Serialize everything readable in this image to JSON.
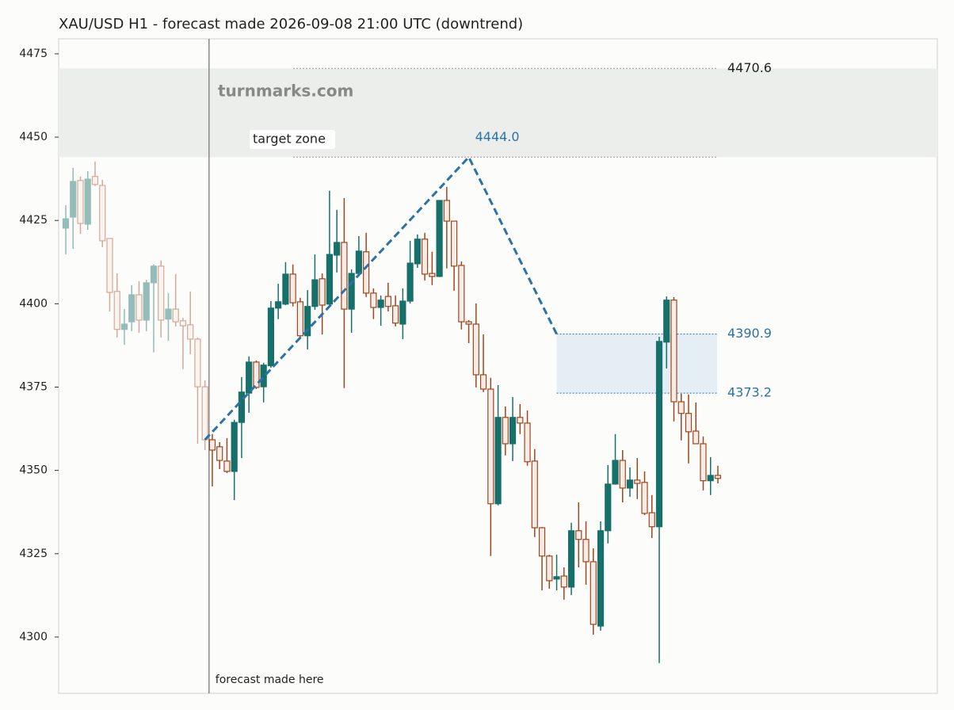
{
  "chart_data": {
    "type": "candlestick",
    "title": "XAU/USD H1 - forecast made 2026-09-08 21:00 UTC (downtrend)",
    "watermark": "turnmarks.com",
    "forecast_note": "forecast made here",
    "ylim": [
      4283.1,
      4479.5
    ],
    "yticks": [
      4300,
      4325,
      4350,
      4375,
      4400,
      4425,
      4450,
      4475
    ],
    "up_color": "#17706a",
    "down_color": "#a0451f",
    "forecast_index": 20,
    "candles": {
      "open": [
        4422.7,
        4426.0,
        4437.0,
        4423.9,
        4438.2,
        4435.5,
        4419.6,
        4403.7,
        4392.3,
        4394.6,
        4402.7,
        4395.1,
        4406.3,
        4411.3,
        4395.4,
        4398.4,
        4394.9,
        4393.7,
        4389.4,
        4375.1,
        4359.2,
        4357.1,
        4352.8,
        4349.7,
        4364.4,
        4373.2,
        4382.5,
        4375.1,
        4381.4,
        4398.7,
        4399.9,
        4408.9,
        4400.6,
        4390.4,
        4399.2,
        4407.5,
        4399.9,
        4414.6,
        4418.4,
        4398.4,
        4409.1,
        4415.6,
        4403.2,
        4398.9,
        4402.2,
        4399.4,
        4393.9,
        4400.8,
        4412.0,
        4419.4,
        4409.1,
        4408.2,
        4431.0,
        4424.8,
        4411.5,
        4394.6,
        4393.9,
        4378.7,
        4374.4,
        4340.0,
        4365.9,
        4358.0,
        4365.9,
        4364.2,
        4352.8,
        4332.8,
        4324.3,
        4317.4,
        4318.3,
        4315.0,
        4331.9,
        4329.3,
        4322.6,
        4303.3,
        4331.9,
        4345.9,
        4353.0,
        4344.7,
        4347.1,
        4346.4,
        4337.3,
        4333.1,
        4388.5,
        4401.1,
        4370.6,
        4367.1,
        4361.8,
        4358.0,
        4346.9,
        4348.5
      ],
      "high": [
        4429.6,
        4440.8,
        4438.2,
        4439.8,
        4442.7,
        4437.2,
        4419.6,
        4409.1,
        4398.4,
        4405.6,
        4406.8,
        4407.2,
        4411.8,
        4413.0,
        4403.2,
        4408.9,
        4395.8,
        4403.7,
        4389.9,
        4377.0,
        4360.9,
        4358.5,
        4359.7,
        4365.2,
        4378.0,
        4384.2,
        4383.0,
        4382.3,
        4400.8,
        4406.0,
        4412.5,
        4411.8,
        4401.8,
        4404.1,
        4414.8,
        4409.1,
        4433.9,
        4428.2,
        4431.7,
        4410.3,
        4420.3,
        4421.3,
        4404.6,
        4402.5,
        4406.3,
        4402.5,
        4404.6,
        4418.9,
        4420.8,
        4421.3,
        4415.6,
        4431.0,
        4435.1,
        4424.8,
        4412.7,
        4395.1,
        4400.1,
        4390.8,
        4377.8,
        4375.6,
        4369.2,
        4372.0,
        4369.9,
        4368.0,
        4356.4,
        4333.0,
        4324.7,
        4324.7,
        4320.9,
        4334.3,
        4340.4,
        4334.7,
        4326.6,
        4334.7,
        4351.6,
        4360.9,
        4356.1,
        4350.9,
        4353.7,
        4349.7,
        4342.6,
        4390.1,
        4402.2,
        4402.0,
        4373.0,
        4372.8,
        4370.4,
        4360.2,
        4354.0,
        4351.4
      ],
      "low": [
        4414.8,
        4416.5,
        4421.0,
        4422.2,
        4435.3,
        4417.0,
        4397.7,
        4389.9,
        4387.7,
        4391.8,
        4391.3,
        4391.8,
        4385.4,
        4389.9,
        4388.9,
        4393.2,
        4380.4,
        4384.9,
        4358.0,
        4356.1,
        4345.2,
        4350.4,
        4349.2,
        4341.1,
        4353.7,
        4367.3,
        4374.4,
        4370.4,
        4380.8,
        4395.4,
        4399.6,
        4399.2,
        4389.9,
        4386.3,
        4398.2,
        4390.8,
        4399.4,
        4409.4,
        4374.7,
        4391.3,
        4408.2,
        4402.0,
        4395.4,
        4393.4,
        4397.7,
        4393.2,
        4389.4,
        4400.1,
        4410.8,
        4407.0,
        4405.6,
        4408.0,
        4410.6,
        4403.9,
        4392.3,
        4388.2,
        4374.9,
        4373.5,
        4324.3,
        4339.5,
        4354.5,
        4352.8,
        4360.9,
        4351.4,
        4330.0,
        4314.0,
        4314.5,
        4314.0,
        4311.2,
        4312.6,
        4320.9,
        4315.7,
        4300.7,
        4301.9,
        4328.1,
        4345.7,
        4340.4,
        4342.1,
        4341.4,
        4336.6,
        4329.7,
        4292.2,
        4380.6,
        4364.7,
        4359.0,
        4352.1,
        4358.0,
        4344.0,
        4342.6,
        4346.1
      ],
      "close": [
        4425.5,
        4436.7,
        4424.1,
        4437.4,
        4435.8,
        4418.9,
        4403.4,
        4392.3,
        4393.9,
        4402.7,
        4395.1,
        4406.3,
        4411.3,
        4395.1,
        4398.4,
        4394.6,
        4393.4,
        4389.4,
        4375.1,
        4359.2,
        4356.1,
        4353.0,
        4349.7,
        4364.4,
        4373.5,
        4382.5,
        4374.9,
        4381.6,
        4398.7,
        4400.6,
        4408.9,
        4400.3,
        4390.4,
        4399.2,
        4407.2,
        4399.6,
        4414.8,
        4418.4,
        4398.4,
        4409.1,
        4415.8,
        4403.2,
        4398.9,
        4401.1,
        4399.2,
        4394.2,
        4400.8,
        4412.2,
        4419.4,
        4408.9,
        4408.2,
        4431.0,
        4424.8,
        4411.3,
        4394.6,
        4393.9,
        4378.7,
        4374.4,
        4340.0,
        4365.9,
        4358.0,
        4365.9,
        4364.2,
        4352.6,
        4332.8,
        4324.3,
        4316.9,
        4318.1,
        4315.0,
        4331.9,
        4329.3,
        4322.6,
        4303.8,
        4331.9,
        4345.9,
        4353.0,
        4344.7,
        4347.1,
        4346.1,
        4337.1,
        4333.1,
        4388.7,
        4401.1,
        4370.6,
        4367.1,
        4361.6,
        4358.0,
        4346.9,
        4348.5,
        4347.6
      ]
    },
    "forecast": {
      "x": [
        19,
        55,
        67
      ],
      "y": [
        4359.2,
        4444,
        4390.9
      ],
      "color": "#2a72a8"
    },
    "target_zone": {
      "name": "target zone",
      "range": [
        4444,
        4470.6
      ],
      "labels": [
        "4444.0",
        "4470.6"
      ],
      "color": "#eceeec"
    },
    "expected_zone": {
      "range": [
        4373.2,
        4390.9
      ],
      "color": "#e6eef5"
    }
  }
}
